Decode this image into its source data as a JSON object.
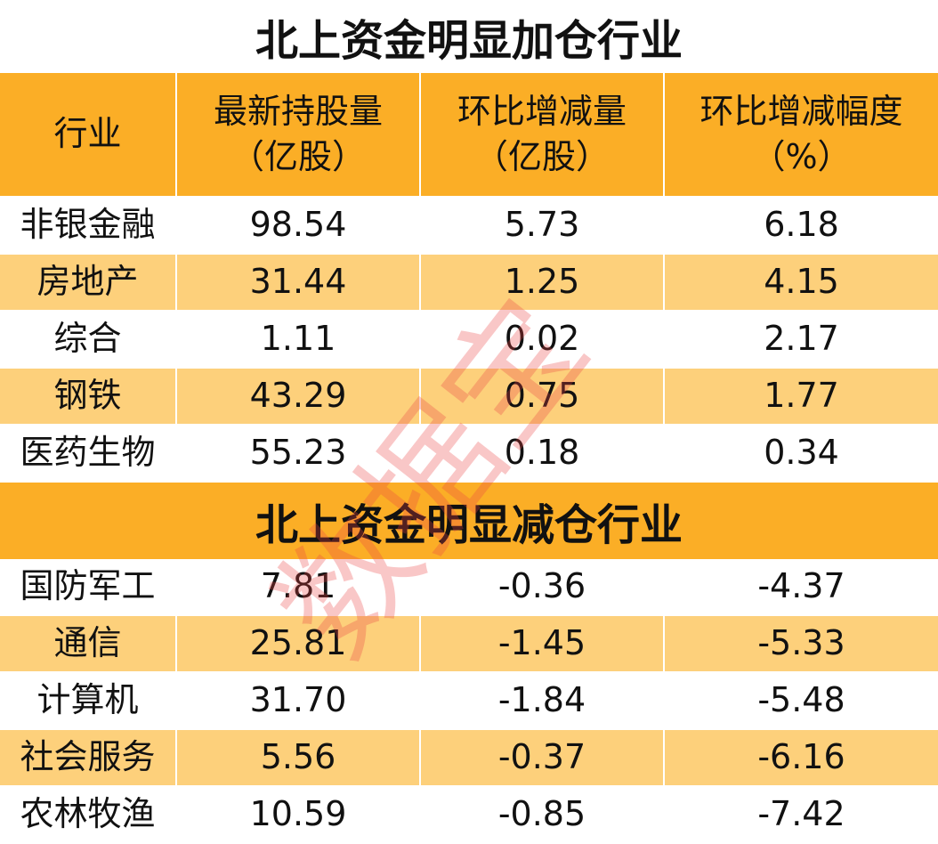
{
  "header": [
    [
      "行业"
    ],
    [
      "最新持股量",
      "（亿股）"
    ],
    [
      "环比增减量",
      "（亿股）"
    ],
    [
      "环比增减幅度",
      "（%）"
    ]
  ],
  "sections": [
    {
      "title": "北上资金明显加仓行业",
      "rows": [
        [
          "非银金融",
          "98.54",
          "5.73",
          "6.18"
        ],
        [
          "房地产",
          "31.44",
          "1.25",
          "4.15"
        ],
        [
          "综合",
          "1.11",
          "0.02",
          "2.17"
        ],
        [
          "钢铁",
          "43.29",
          "0.75",
          "1.77"
        ],
        [
          "医药生物",
          "55.23",
          "0.18",
          "0.34"
        ]
      ]
    },
    {
      "title": "北上资金明显减仓行业",
      "rows": [
        [
          "国防军工",
          "7.81",
          "-0.36",
          "-4.37"
        ],
        [
          "通信",
          "25.81",
          "-1.45",
          "-5.33"
        ],
        [
          "计算机",
          "31.70",
          "-1.84",
          "-5.48"
        ],
        [
          "社会服务",
          "5.56",
          "-0.37",
          "-6.16"
        ],
        [
          "农林牧渔",
          "10.59",
          "-0.85",
          "-7.42"
        ]
      ]
    }
  ],
  "watermark": "数据宝"
}
